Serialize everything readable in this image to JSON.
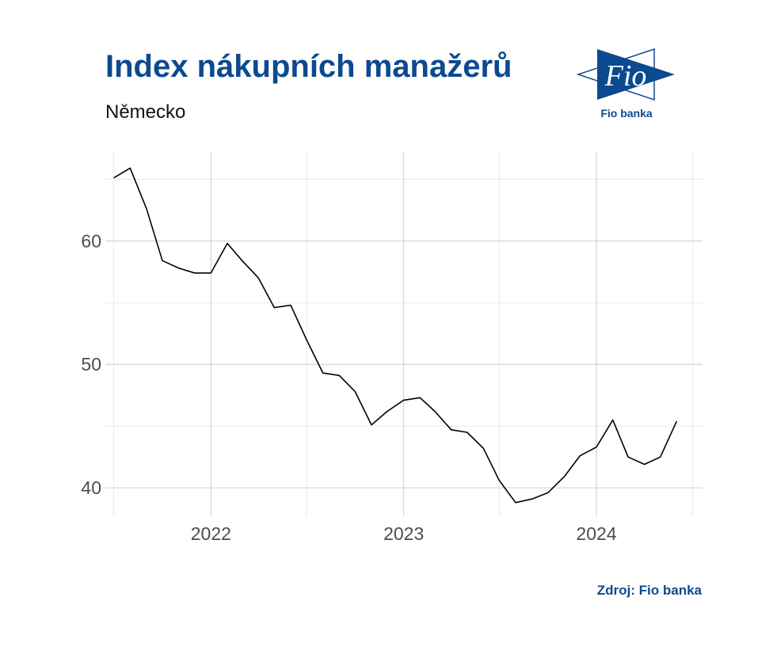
{
  "title": "Index nákupních manažerů",
  "subtitle": "Německo",
  "logo": {
    "wordmark": "Fio",
    "caption": "Fio banka",
    "color": "#0b4a8f"
  },
  "source": "Zdroj: Fio banka",
  "chart_data": {
    "type": "line",
    "title": "Index nákupních manažerů",
    "subtitle": "Německo",
    "xlabel": "",
    "ylabel": "",
    "x_ticks": [
      "2022",
      "2023",
      "2024"
    ],
    "y_ticks": [
      40,
      50,
      60
    ],
    "ylim": [
      37.7,
      67.2
    ],
    "xlim": [
      "2021-06-15",
      "2024-07-20"
    ],
    "grid": true,
    "line_color": "#000000",
    "series": [
      {
        "x": [
          "2021-07-01",
          "2021-08-01",
          "2021-09-01",
          "2021-10-01",
          "2021-11-01",
          "2021-12-01",
          "2022-01-01",
          "2022-02-01",
          "2022-03-01",
          "2022-04-01",
          "2022-05-01",
          "2022-06-01",
          "2022-07-01",
          "2022-08-01",
          "2022-09-01",
          "2022-10-01",
          "2022-11-01",
          "2022-12-01",
          "2023-01-01",
          "2023-02-01",
          "2023-03-01",
          "2023-04-01",
          "2023-05-01",
          "2023-06-01",
          "2023-07-01",
          "2023-08-01",
          "2023-09-01",
          "2023-10-01",
          "2023-11-01",
          "2023-12-01",
          "2024-01-01",
          "2024-02-01",
          "2024-03-01",
          "2024-04-01",
          "2024-05-01",
          "2024-06-01"
        ],
        "values": [
          65.1,
          65.9,
          62.6,
          58.4,
          57.8,
          57.4,
          57.4,
          59.8,
          58.4,
          57.0,
          54.6,
          54.8,
          52.0,
          49.3,
          49.1,
          47.8,
          45.1,
          46.2,
          47.1,
          47.3,
          46.2,
          44.7,
          44.5,
          43.2,
          40.6,
          38.8,
          39.1,
          39.6,
          40.9,
          42.6,
          43.3,
          45.5,
          42.5,
          41.9,
          42.5,
          45.4
        ]
      }
    ]
  }
}
